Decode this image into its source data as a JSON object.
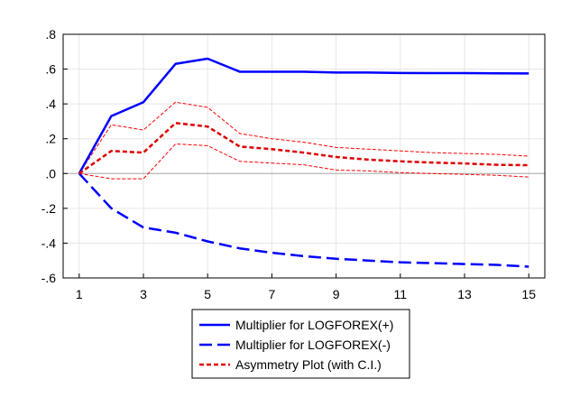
{
  "chart_data": {
    "type": "line",
    "x": [
      1,
      2,
      3,
      4,
      5,
      6,
      7,
      8,
      9,
      10,
      11,
      12,
      13,
      14,
      15
    ],
    "x_ticks": [
      1,
      3,
      5,
      7,
      9,
      11,
      13,
      15
    ],
    "x_tick_labels": [
      "1",
      "3",
      "5",
      "7",
      "9",
      "11",
      "13",
      "15"
    ],
    "xlim": [
      0.5,
      15.5
    ],
    "ylim": [
      -0.6,
      0.8
    ],
    "y_ticks": [
      -0.6,
      -0.4,
      -0.2,
      0.0,
      0.2,
      0.4,
      0.6,
      0.8
    ],
    "y_tick_labels": [
      "-.6",
      "-.4",
      "-.2",
      ".0",
      ".2",
      ".4",
      ".6",
      ".8"
    ],
    "grid": true,
    "zero_line": true,
    "legend_position": "bottom-center",
    "series": [
      {
        "name": "Multiplier for LOGFOREX(+)",
        "color": "#0000ff",
        "style": "solid",
        "values": [
          0.0,
          0.33,
          0.41,
          0.63,
          0.66,
          0.585,
          0.585,
          0.585,
          0.58,
          0.58,
          0.578,
          0.577,
          0.577,
          0.576,
          0.575
        ]
      },
      {
        "name": "Multiplier for LOGFOREX(-)",
        "color": "#0000ff",
        "style": "longdash",
        "values": [
          0.0,
          -0.2,
          -0.31,
          -0.34,
          -0.39,
          -0.43,
          -0.455,
          -0.475,
          -0.49,
          -0.5,
          -0.51,
          -0.515,
          -0.52,
          -0.525,
          -0.535
        ]
      },
      {
        "name": "Asymmetry Plot (with C.I.)",
        "color": "#dd0000",
        "style": "dash",
        "values": [
          0.0,
          0.13,
          0.12,
          0.29,
          0.27,
          0.155,
          0.14,
          0.12,
          0.095,
          0.08,
          0.07,
          0.063,
          0.058,
          0.05,
          0.048
        ]
      }
    ],
    "confidence_band": {
      "color": "#ff0000",
      "upper": [
        0.0,
        0.28,
        0.25,
        0.41,
        0.38,
        0.23,
        0.2,
        0.18,
        0.15,
        0.14,
        0.13,
        0.12,
        0.115,
        0.11,
        0.1
      ],
      "lower": [
        0.0,
        -0.03,
        -0.03,
        0.17,
        0.16,
        0.07,
        0.06,
        0.05,
        0.02,
        0.015,
        0.005,
        0.0,
        -0.005,
        -0.01,
        -0.02
      ]
    }
  }
}
